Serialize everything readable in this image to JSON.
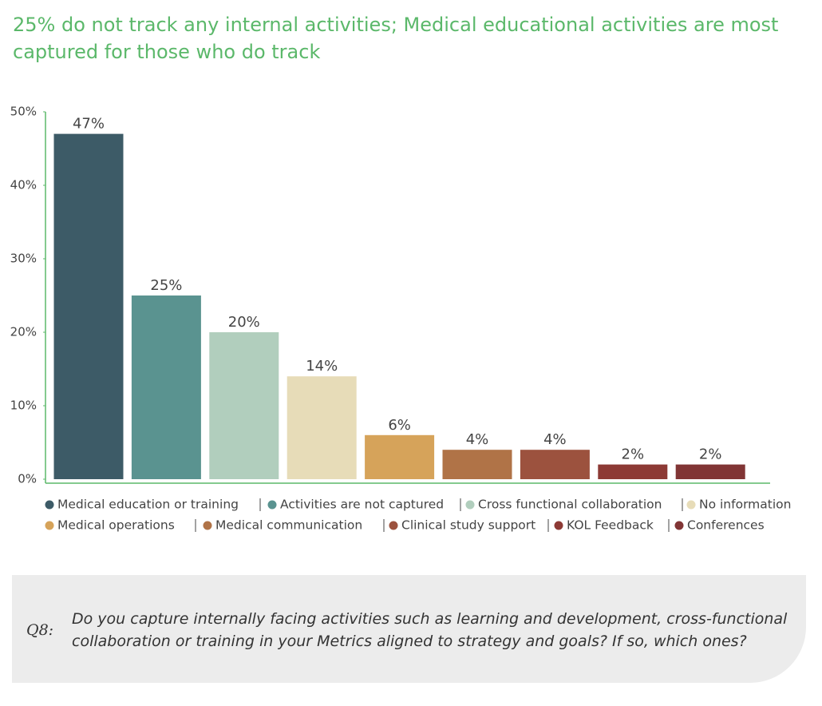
{
  "chart_data": {
    "type": "bar",
    "title": "25% do not track any internal activities; Medical educational activities are most captured for those who do track",
    "categories": [
      "Medical education or training",
      "Activities are not captured",
      "Cross functional collaboration",
      "No information",
      "Medical operations",
      "Medical communication",
      "Clinical study support",
      "KOL Feedback",
      "Conferences"
    ],
    "values": [
      47,
      25,
      20,
      14,
      6,
      4,
      4,
      2,
      2
    ],
    "value_labels": [
      "47%",
      "25%",
      "20%",
      "14%",
      "6%",
      "4%",
      "4%",
      "2%",
      "2%"
    ],
    "colors": [
      "#3d5b67",
      "#5a9390",
      "#b1cebd",
      "#e7dcb8",
      "#d6a35a",
      "#b07347",
      "#9c523e",
      "#8d3a35",
      "#813535"
    ],
    "ylim": [
      0,
      50
    ],
    "yticks": [
      {
        "value": 0,
        "label": "0%"
      },
      {
        "value": 10,
        "label": "10%"
      },
      {
        "value": 20,
        "label": "20%"
      },
      {
        "value": 30,
        "label": "30%"
      },
      {
        "value": 40,
        "label": "40%"
      },
      {
        "value": 50,
        "label": "50%"
      }
    ],
    "grid": false,
    "legend": "bottom"
  },
  "note": {
    "label": "Q8:",
    "question": "Do you capture internally facing activities such as learning and development, cross-functional collaboration or training in your Metrics aligned to strategy and goals? If so, which ones?"
  }
}
